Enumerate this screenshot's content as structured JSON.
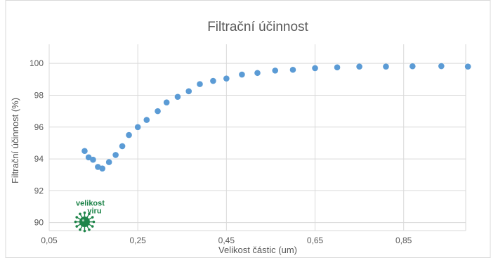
{
  "chart_data": {
    "type": "scatter",
    "title": "Filtrační účinnost",
    "xlabel": "Velikost částic (um)",
    "ylabel": "Filtrační účinnost (%)",
    "xlim": [
      0.05,
      0.99
    ],
    "ylim": [
      89.5,
      101.2
    ],
    "x_ticks": [
      "0,05",
      "0,25",
      "0,45",
      "0,65",
      "0,85"
    ],
    "x_tick_values": [
      0.05,
      0.25,
      0.45,
      0.65,
      0.85
    ],
    "y_ticks": [
      "90",
      "92",
      "94",
      "96",
      "98",
      "100"
    ],
    "y_tick_values": [
      90,
      92,
      94,
      96,
      98,
      100
    ],
    "grid": true,
    "marker_color": "#5B9BD5",
    "series": [
      {
        "x": [
          0.13,
          0.139,
          0.149,
          0.16,
          0.17,
          0.185,
          0.2,
          0.215,
          0.23,
          0.25,
          0.27,
          0.295,
          0.315,
          0.34,
          0.365,
          0.39,
          0.42,
          0.45,
          0.485,
          0.52,
          0.56,
          0.6,
          0.65,
          0.7,
          0.75,
          0.81,
          0.87,
          0.935,
          0.995
        ],
        "y": [
          94.5,
          94.1,
          93.95,
          93.5,
          93.4,
          93.8,
          94.25,
          94.8,
          95.5,
          96.0,
          96.45,
          97.0,
          97.55,
          97.9,
          98.25,
          98.7,
          98.9,
          99.05,
          99.3,
          99.4,
          99.55,
          99.6,
          99.7,
          99.75,
          99.8,
          99.8,
          99.82,
          99.83,
          99.8
        ]
      }
    ],
    "annotation": {
      "text_line1": "velikost",
      "text_line2": "viru",
      "color": "#1E8449",
      "icon": "virus-icon",
      "x": 0.13,
      "y": 90.05
    }
  }
}
